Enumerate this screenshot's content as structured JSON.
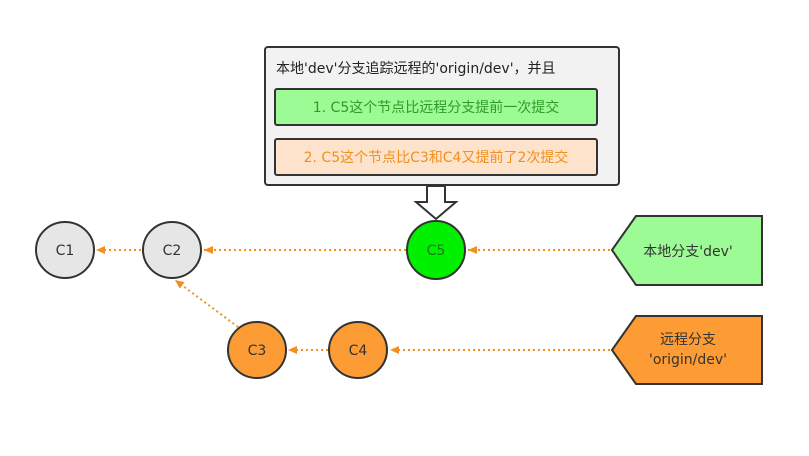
{
  "note": {
    "title": "本地'dev'分支追踪远程的'origin/dev'，并且",
    "item1": "1. C5这个节点比远程分支提前一次提交",
    "item2": "2. C5这个节点比C3和C4又提前了2次提交"
  },
  "commits": {
    "c1": "C1",
    "c2": "C2",
    "c3": "C3",
    "c4": "C4",
    "c5": "C5"
  },
  "branches": {
    "local": "本地分支'dev'",
    "remote_line1": "远程分支",
    "remote_line2": "'origin/dev'"
  },
  "colors": {
    "gray_commit": "#e6e6e6",
    "local_commit": "#00f000",
    "remote_commit": "#fd9c35",
    "local_label": "#9dfb96",
    "remote_label": "#fd9c35",
    "arrow": "#f28f1d"
  }
}
